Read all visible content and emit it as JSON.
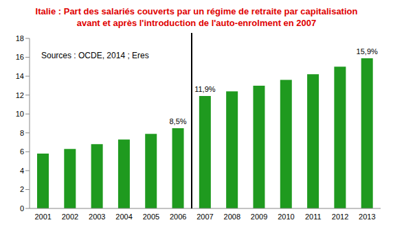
{
  "chart_data": {
    "type": "bar",
    "title": "Italie : Part des salariés couverts par un régime de retraite par capitalisation\navant et après l'introduction de l'auto-enrolment en 2007",
    "annotations": [
      "Sources : OCDE, 2014 ; Eres"
    ],
    "categories": [
      "2001",
      "2002",
      "2003",
      "2004",
      "2005",
      "2006",
      "2007",
      "2008",
      "2009",
      "2010",
      "2011",
      "2012",
      "2013"
    ],
    "values": [
      5.8,
      6.3,
      6.8,
      7.3,
      7.9,
      8.5,
      11.9,
      12.4,
      13.0,
      13.6,
      14.2,
      15.0,
      15.9
    ],
    "value_labels": [
      null,
      null,
      null,
      null,
      null,
      "8,5%",
      "11,9%",
      null,
      null,
      null,
      null,
      null,
      "15,9%"
    ],
    "color": "#1f9a1f",
    "ylim": [
      0,
      18
    ],
    "yticks": [
      0,
      2,
      4,
      6,
      8,
      10,
      12,
      14,
      16,
      18
    ],
    "grid": false
  }
}
